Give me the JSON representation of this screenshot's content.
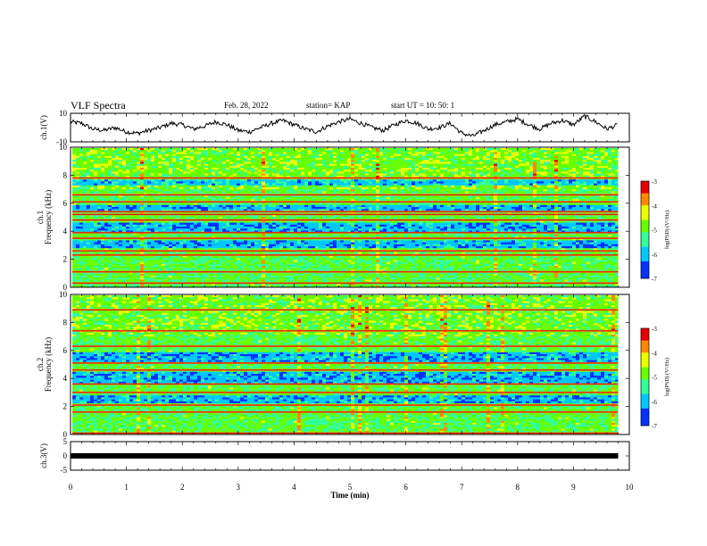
{
  "header": {
    "title": "VLF Spectra",
    "date": "Feb. 28, 2022",
    "station": "station= KAP",
    "start": "start  UT  =   10: 50: 1"
  },
  "chart_data": [
    {
      "type": "line",
      "name": "ch1-waveform",
      "ylabel": "ch.1(V)",
      "ylim": [
        -10,
        10
      ],
      "ytick_labels": [
        "10",
        "-10"
      ],
      "xlim": [
        0,
        10
      ],
      "x": [
        0,
        0.2,
        0.4,
        0.6,
        0.8,
        1.0,
        1.2,
        1.4,
        1.6,
        1.8,
        2.0,
        2.2,
        2.4,
        2.6,
        2.8,
        3.0,
        3.2,
        3.4,
        3.6,
        3.8,
        4.0,
        4.2,
        4.4,
        4.6,
        4.8,
        5.0,
        5.2,
        5.4,
        5.6,
        5.8,
        6.0,
        6.2,
        6.4,
        6.6,
        6.8,
        7.0,
        7.2,
        7.4,
        7.6,
        7.8,
        8.0,
        8.2,
        8.4,
        8.6,
        8.8,
        9.0,
        9.2,
        9.4,
        9.6,
        9.8
      ],
      "values": [
        4,
        3,
        -1,
        -2,
        0,
        -3,
        -4,
        -2,
        0,
        3,
        2,
        -1,
        1,
        4,
        2,
        -2,
        -3,
        0,
        3,
        5,
        2,
        -1,
        -3,
        1,
        4,
        6,
        3,
        0,
        -2,
        2,
        5,
        3,
        -1,
        0,
        3,
        -4,
        -6,
        -2,
        2,
        4,
        6,
        2,
        -1,
        3,
        5,
        2,
        8,
        4,
        -1,
        2
      ]
    },
    {
      "type": "heatmap",
      "name": "ch1-spectrogram",
      "ylabel": "ch.1 Frequency (kHz)",
      "ylim": [
        0,
        10
      ],
      "ytick_labels": [
        "0",
        "2",
        "4",
        "6",
        "8",
        "10"
      ],
      "xlim": [
        0,
        10
      ],
      "colorbar": {
        "label": "log(PSD) (V²/Hz)",
        "range": [
          -7,
          -3
        ],
        "ticks": [
          "-3",
          "-4",
          "-5",
          "-6",
          "-7"
        ]
      },
      "persistent_lines_khz": [
        0.3,
        1.1,
        2.3,
        2.6,
        3.5,
        3.9,
        4.8,
        5.2,
        5.4,
        6.1,
        6.6,
        7.8
      ],
      "dark_bands_khz": [
        [
          2.9,
          3.4
        ],
        [
          4.0,
          4.7
        ],
        [
          5.5,
          6.0
        ],
        [
          7.3,
          7.7
        ]
      ]
    },
    {
      "type": "heatmap",
      "name": "ch2-spectrogram",
      "ylabel": "ch.2 Frequency (kHz)",
      "ylim": [
        0,
        10
      ],
      "ytick_labels": [
        "0",
        "2",
        "4",
        "6",
        "8",
        "10"
      ],
      "xlim": [
        0,
        10
      ],
      "colorbar": {
        "label": "log(PSD) (V²/Hz)",
        "range": [
          -7,
          -3
        ],
        "ticks": [
          "-3",
          "-4",
          "-5",
          "-6",
          "-7"
        ]
      },
      "persistent_lines_khz": [
        0.1,
        1.6,
        2.1,
        3.0,
        3.6,
        4.6,
        5.1,
        6.3,
        7.4,
        8.9
      ],
      "dark_bands_khz": [
        [
          2.3,
          2.9
        ],
        [
          3.7,
          4.5
        ],
        [
          5.2,
          6.0
        ]
      ]
    },
    {
      "type": "line",
      "name": "ch3-waveform",
      "ylabel": "ch.3(V)",
      "ylim": [
        -5,
        5
      ],
      "ytick_labels": [
        "5",
        "0",
        "-5"
      ],
      "xlim": [
        0,
        10
      ],
      "x": [
        0,
        9.8
      ],
      "values": [
        0,
        0
      ]
    }
  ],
  "xaxis": {
    "label": "Time  (min)",
    "ticks": [
      "0",
      "1",
      "2",
      "3",
      "4",
      "5",
      "6",
      "7",
      "8",
      "9",
      "10"
    ]
  }
}
